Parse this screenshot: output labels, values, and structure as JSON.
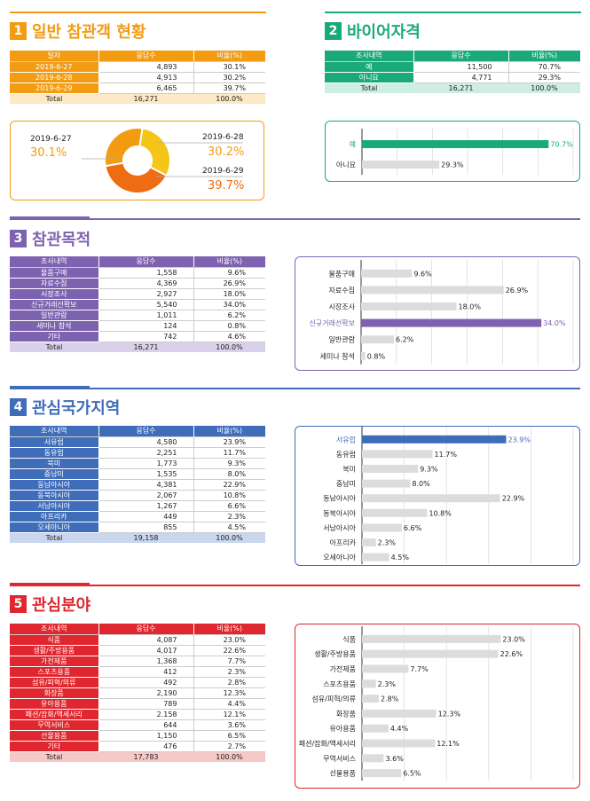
{
  "s1": {
    "num": "1",
    "title": "일반 참관객 현황",
    "color": "#f39c12",
    "light": "#fde9c6",
    "headers": [
      "일자",
      "응답수",
      "비율(%)"
    ],
    "rows": [
      {
        "label": "2019-6-27",
        "count": "4,893",
        "pct": "30.1%"
      },
      {
        "label": "2019-6-28",
        "count": "4,913",
        "pct": "30.2%"
      },
      {
        "label": "2019-6-29",
        "count": "6,465",
        "pct": "39.7%"
      }
    ],
    "total": {
      "label": "Total",
      "count": "16,271",
      "pct": "100.0%"
    },
    "donut_labels": [
      {
        "date": "2019-6-27",
        "pct": "30.1%"
      },
      {
        "date": "2019-6-28",
        "pct": "30.2%"
      },
      {
        "date": "2019-6-29",
        "pct": "39.7%"
      }
    ]
  },
  "s2": {
    "num": "2",
    "title": "바이어자격",
    "color": "#1aaa7a",
    "light": "#cfeee2",
    "headers": [
      "조사내역",
      "응답수",
      "비율(%)"
    ],
    "rows": [
      {
        "label": "예",
        "count": "11,500",
        "pct": "70.7%"
      },
      {
        "label": "아니요",
        "count": "4,771",
        "pct": "29.3%"
      }
    ],
    "total": {
      "label": "Total",
      "count": "16,271",
      "pct": "100.0%"
    }
  },
  "s3": {
    "num": "3",
    "title": "참관목적",
    "color": "#7d62b0",
    "light": "#d9d1ea",
    "headers": [
      "조사내역",
      "응답수",
      "비율(%)"
    ],
    "rows": [
      {
        "label": "물품구매",
        "count": "1,558",
        "pct": "9.6%"
      },
      {
        "label": "자료수집",
        "count": "4,369",
        "pct": "26.9%"
      },
      {
        "label": "시장조사",
        "count": "2,927",
        "pct": "18.0%"
      },
      {
        "label": "신규거래선확보",
        "count": "5,540",
        "pct": "34.0%"
      },
      {
        "label": "일반관람",
        "count": "1,011",
        "pct": "6.2%"
      },
      {
        "label": "세미나 참석",
        "count": "124",
        "pct": "0.8%"
      },
      {
        "label": "기타",
        "count": "742",
        "pct": "4.6%"
      }
    ],
    "total": {
      "label": "Total",
      "count": "16,271",
      "pct": "100.0%"
    }
  },
  "s4": {
    "num": "4",
    "title": "관심국가지역",
    "color": "#3f6dba",
    "light": "#c9d6ee",
    "headers": [
      "조사내역",
      "응답수",
      "비율(%)"
    ],
    "rows": [
      {
        "label": "서유럽",
        "count": "4,580",
        "pct": "23.9%"
      },
      {
        "label": "동유럽",
        "count": "2,251",
        "pct": "11.7%"
      },
      {
        "label": "북미",
        "count": "1,773",
        "pct": "9.3%"
      },
      {
        "label": "중남미",
        "count": "1,535",
        "pct": "8.0%"
      },
      {
        "label": "동남아시아",
        "count": "4,381",
        "pct": "22.9%"
      },
      {
        "label": "동북아시아",
        "count": "2,067",
        "pct": "10.8%"
      },
      {
        "label": "서남아시아",
        "count": "1,267",
        "pct": "6.6%"
      },
      {
        "label": "아프리카",
        "count": "449",
        "pct": "2.3%"
      },
      {
        "label": "오세아니아",
        "count": "855",
        "pct": "4.5%"
      }
    ],
    "total": {
      "label": "Total",
      "count": "19,158",
      "pct": "100.0%"
    }
  },
  "s5": {
    "num": "5",
    "title": "관심분야",
    "color": "#e0262e",
    "light": "#f6c8c6",
    "headers": [
      "조사내역",
      "응답수",
      "비율(%)"
    ],
    "rows": [
      {
        "label": "식품",
        "count": "4,087",
        "pct": "23.0%"
      },
      {
        "label": "생활/주방용품",
        "count": "4,017",
        "pct": "22.6%"
      },
      {
        "label": "가전제품",
        "count": "1,368",
        "pct": "7.7%"
      },
      {
        "label": "스포츠용품",
        "count": "412",
        "pct": "2.3%"
      },
      {
        "label": "섬유/피혁/의류",
        "count": "492",
        "pct": "2.8%"
      },
      {
        "label": "화장품",
        "count": "2,190",
        "pct": "12.3%"
      },
      {
        "label": "유아용품",
        "count": "789",
        "pct": "4.4%"
      },
      {
        "label": "패션/잡화/액세서리",
        "count": "2.158",
        "pct": "12.1%"
      },
      {
        "label": "무역서비스",
        "count": "644",
        "pct": "3.6%"
      },
      {
        "label": "선물용품",
        "count": "1,150",
        "pct": "6.5%"
      },
      {
        "label": "기타",
        "count": "476",
        "pct": "2.7%"
      }
    ],
    "total": {
      "label": "Total",
      "count": "17,783",
      "pct": "100.0%"
    }
  },
  "chart_data": [
    {
      "type": "pie",
      "categories": [
        "2019-6-27",
        "2019-6-28",
        "2019-6-29"
      ],
      "values": [
        30.1,
        30.2,
        39.7
      ],
      "colors": [
        "#f39c12",
        "#f5c518",
        "#ee6c12"
      ]
    },
    {
      "type": "bar",
      "categories": [
        "예",
        "아니요"
      ],
      "values": [
        70.7,
        29.3
      ],
      "labels": [
        "70.7%",
        "29.3%"
      ],
      "highlight_index": 0,
      "highlight_color": "#1aaa7a",
      "xlim": [
        0,
        80
      ]
    },
    {
      "type": "bar",
      "categories": [
        "물품구매",
        "자료수집",
        "시장조사",
        "신규거래선확보",
        "일반관람",
        "세미나 참석"
      ],
      "values": [
        9.6,
        26.9,
        18.0,
        34.0,
        6.2,
        0.8
      ],
      "labels": [
        "9.6%",
        "26.9%",
        "18.0%",
        "34.0%",
        "6.2%",
        "0.8%"
      ],
      "highlight_index": 3,
      "highlight_color": "#7d62b0",
      "xlim": [
        0,
        40
      ]
    },
    {
      "type": "bar",
      "categories": [
        "서유럽",
        "동유럽",
        "북미",
        "중남미",
        "동남아시아",
        "동북아시아",
        "서남아시아",
        "아프리카",
        "오세아니아"
      ],
      "values": [
        23.9,
        11.7,
        9.3,
        8.0,
        22.9,
        10.8,
        6.6,
        2.3,
        4.5
      ],
      "labels": [
        "23.9%",
        "11.7%",
        "9.3%",
        "8.0%",
        "22.9%",
        "10.8%",
        "6.6%",
        "2.3%",
        "4.5%"
      ],
      "highlight_index": 0,
      "highlight_color": "#3f6dba",
      "xlim": [
        0,
        35
      ]
    },
    {
      "type": "bar",
      "categories": [
        "식품",
        "생활/주방용품",
        "가전제품",
        "스포츠용품",
        "섬유/피혁/의류",
        "화장품",
        "유아용품",
        "패션/잡화/액세서리",
        "무역서비스",
        "선물용품"
      ],
      "values": [
        23.0,
        22.6,
        7.7,
        2.3,
        2.8,
        12.3,
        4.4,
        12.1,
        3.6,
        6.5
      ],
      "labels": [
        "23.0%",
        "22.6%",
        "7.7%",
        "2.3%",
        "2.8%",
        "12.3%",
        "4.4%",
        "12.1%",
        "3.6%",
        "6.5%"
      ],
      "highlight_index": -1,
      "highlight_color": "#e0262e",
      "xlim": [
        0,
        35
      ]
    }
  ]
}
